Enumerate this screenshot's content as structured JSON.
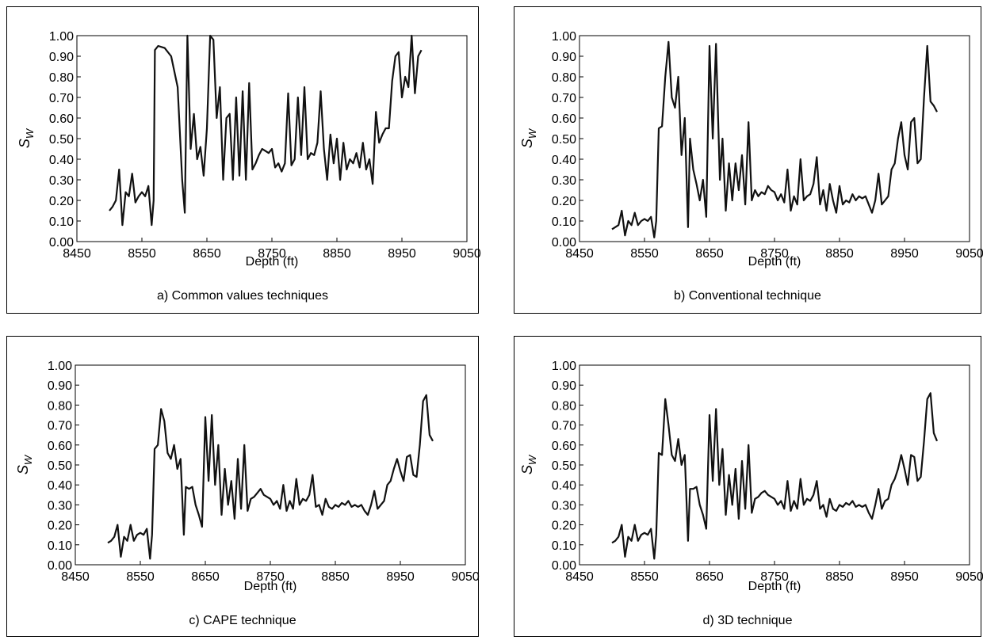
{
  "chart_data": [
    {
      "type": "line",
      "caption": "a) Common values techniques",
      "xlabel": "Depth (ft)",
      "ylabel": "SW",
      "xlim": [
        8450,
        9050
      ],
      "ylim": [
        0.0,
        1.0
      ],
      "xticks": [
        "8450",
        "8550",
        "8650",
        "8750",
        "8850",
        "8950",
        "9050"
      ],
      "yticks": [
        "0.00",
        "0.10",
        "0.20",
        "0.30",
        "0.40",
        "0.50",
        "0.60",
        "0.70",
        "0.80",
        "0.90",
        "1.00"
      ],
      "x": [
        8500,
        8505,
        8510,
        8515,
        8520,
        8525,
        8530,
        8535,
        8540,
        8545,
        8550,
        8555,
        8560,
        8565,
        8568,
        8570,
        8575,
        8585,
        8595,
        8605,
        8612,
        8616,
        8620,
        8625,
        8630,
        8635,
        8640,
        8645,
        8650,
        8655,
        8660,
        8665,
        8670,
        8675,
        8680,
        8685,
        8690,
        8695,
        8700,
        8705,
        8710,
        8715,
        8720,
        8725,
        8730,
        8735,
        8740,
        8745,
        8750,
        8755,
        8760,
        8765,
        8770,
        8775,
        8780,
        8785,
        8790,
        8795,
        8800,
        8805,
        8810,
        8815,
        8820,
        8825,
        8830,
        8835,
        8840,
        8845,
        8850,
        8855,
        8860,
        8865,
        8870,
        8875,
        8880,
        8885,
        8890,
        8895,
        8900,
        8905,
        8910,
        8915,
        8920,
        8925,
        8930,
        8935,
        8940,
        8945,
        8950,
        8955,
        8960,
        8965,
        8970,
        8975,
        8980
      ],
      "y": [
        0.15,
        0.17,
        0.2,
        0.35,
        0.08,
        0.24,
        0.22,
        0.33,
        0.19,
        0.22,
        0.24,
        0.22,
        0.27,
        0.08,
        0.2,
        0.93,
        0.95,
        0.94,
        0.9,
        0.75,
        0.3,
        0.14,
        1.0,
        0.45,
        0.62,
        0.4,
        0.46,
        0.32,
        0.55,
        1.0,
        0.98,
        0.6,
        0.75,
        0.3,
        0.6,
        0.62,
        0.3,
        0.7,
        0.32,
        0.73,
        0.3,
        0.77,
        0.35,
        0.38,
        0.42,
        0.45,
        0.44,
        0.43,
        0.45,
        0.36,
        0.38,
        0.34,
        0.38,
        0.72,
        0.37,
        0.4,
        0.7,
        0.42,
        0.75,
        0.4,
        0.43,
        0.42,
        0.48,
        0.73,
        0.45,
        0.3,
        0.52,
        0.38,
        0.5,
        0.3,
        0.48,
        0.35,
        0.4,
        0.38,
        0.43,
        0.36,
        0.48,
        0.35,
        0.4,
        0.28,
        0.63,
        0.48,
        0.52,
        0.55,
        0.55,
        0.78,
        0.9,
        0.92,
        0.7,
        0.8,
        0.75,
        1.0,
        0.72,
        0.9,
        0.93
      ]
    },
    {
      "type": "line",
      "caption": "b) Conventional technique",
      "xlabel": "Depth (ft)",
      "ylabel": "SW",
      "xlim": [
        8450,
        9050
      ],
      "ylim": [
        0.0,
        1.0
      ],
      "xticks": [
        "8450",
        "8550",
        "8650",
        "8750",
        "8850",
        "8950",
        "9050"
      ],
      "yticks": [
        "0.00",
        "0.10",
        "0.20",
        "0.30",
        "0.40",
        "0.50",
        "0.60",
        "0.70",
        "0.80",
        "0.90",
        "1.00"
      ],
      "x": [
        8500,
        8505,
        8510,
        8515,
        8520,
        8525,
        8530,
        8535,
        8540,
        8545,
        8550,
        8555,
        8560,
        8565,
        8568,
        8572,
        8577,
        8582,
        8587,
        8592,
        8597,
        8602,
        8607,
        8612,
        8617,
        8620,
        8625,
        8630,
        8635,
        8640,
        8645,
        8650,
        8655,
        8660,
        8663,
        8666,
        8670,
        8675,
        8680,
        8685,
        8690,
        8695,
        8700,
        8705,
        8710,
        8715,
        8720,
        8725,
        8730,
        8735,
        8740,
        8745,
        8750,
        8755,
        8760,
        8765,
        8770,
        8775,
        8780,
        8785,
        8790,
        8795,
        8800,
        8805,
        8810,
        8815,
        8820,
        8825,
        8830,
        8835,
        8840,
        8845,
        8850,
        8855,
        8860,
        8865,
        8870,
        8875,
        8880,
        8885,
        8890,
        8895,
        8900,
        8905,
        8910,
        8915,
        8920,
        8925,
        8930,
        8935,
        8940,
        8945,
        8950,
        8955,
        8960,
        8965,
        8970,
        8975,
        8980,
        8985,
        8990,
        8995,
        9000
      ],
      "y": [
        0.06,
        0.07,
        0.08,
        0.15,
        0.03,
        0.1,
        0.08,
        0.14,
        0.08,
        0.1,
        0.11,
        0.1,
        0.12,
        0.02,
        0.1,
        0.55,
        0.56,
        0.8,
        0.97,
        0.7,
        0.65,
        0.8,
        0.42,
        0.6,
        0.07,
        0.5,
        0.35,
        0.28,
        0.2,
        0.3,
        0.12,
        0.95,
        0.5,
        0.96,
        0.62,
        0.3,
        0.5,
        0.15,
        0.38,
        0.2,
        0.38,
        0.25,
        0.42,
        0.18,
        0.58,
        0.2,
        0.25,
        0.22,
        0.24,
        0.23,
        0.27,
        0.25,
        0.24,
        0.2,
        0.23,
        0.19,
        0.35,
        0.15,
        0.22,
        0.18,
        0.4,
        0.2,
        0.22,
        0.23,
        0.28,
        0.41,
        0.18,
        0.25,
        0.15,
        0.28,
        0.2,
        0.14,
        0.27,
        0.18,
        0.2,
        0.19,
        0.23,
        0.2,
        0.22,
        0.21,
        0.22,
        0.18,
        0.14,
        0.2,
        0.33,
        0.18,
        0.2,
        0.22,
        0.35,
        0.38,
        0.5,
        0.58,
        0.42,
        0.35,
        0.58,
        0.6,
        0.38,
        0.4,
        0.7,
        0.95,
        0.68,
        0.66,
        0.63
      ]
    },
    {
      "type": "line",
      "caption": "c) CAPE technique",
      "xlabel": "Depth (ft)",
      "ylabel": "SW",
      "xlim": [
        8450,
        9050
      ],
      "ylim": [
        0.0,
        1.0
      ],
      "xticks": [
        "8450",
        "8550",
        "8650",
        "8750",
        "8850",
        "8950",
        "9050"
      ],
      "yticks": [
        "0.00",
        "0.10",
        "0.20",
        "0.30",
        "0.40",
        "0.50",
        "0.60",
        "0.70",
        "0.80",
        "0.90",
        "1.00"
      ],
      "x": [
        8500,
        8505,
        8510,
        8515,
        8520,
        8525,
        8530,
        8535,
        8540,
        8545,
        8550,
        8555,
        8560,
        8565,
        8568,
        8572,
        8577,
        8582,
        8587,
        8592,
        8597,
        8602,
        8607,
        8612,
        8617,
        8620,
        8625,
        8630,
        8635,
        8640,
        8645,
        8650,
        8655,
        8660,
        8665,
        8670,
        8675,
        8680,
        8685,
        8690,
        8695,
        8700,
        8705,
        8710,
        8715,
        8720,
        8725,
        8730,
        8735,
        8740,
        8745,
        8750,
        8755,
        8760,
        8765,
        8770,
        8775,
        8780,
        8785,
        8790,
        8795,
        8800,
        8805,
        8810,
        8815,
        8820,
        8825,
        8830,
        8835,
        8840,
        8845,
        8850,
        8855,
        8860,
        8865,
        8870,
        8875,
        8880,
        8885,
        8890,
        8895,
        8900,
        8905,
        8910,
        8915,
        8920,
        8925,
        8930,
        8935,
        8940,
        8945,
        8950,
        8955,
        8960,
        8965,
        8970,
        8975,
        8980,
        8985,
        8990,
        8995,
        9000
      ],
      "y": [
        0.11,
        0.12,
        0.14,
        0.2,
        0.04,
        0.14,
        0.12,
        0.2,
        0.12,
        0.15,
        0.16,
        0.15,
        0.18,
        0.03,
        0.15,
        0.58,
        0.6,
        0.78,
        0.72,
        0.56,
        0.53,
        0.6,
        0.48,
        0.53,
        0.15,
        0.39,
        0.38,
        0.39,
        0.3,
        0.25,
        0.19,
        0.74,
        0.42,
        0.75,
        0.4,
        0.6,
        0.25,
        0.48,
        0.3,
        0.42,
        0.23,
        0.53,
        0.28,
        0.6,
        0.27,
        0.33,
        0.34,
        0.36,
        0.38,
        0.35,
        0.34,
        0.33,
        0.3,
        0.32,
        0.28,
        0.4,
        0.27,
        0.32,
        0.28,
        0.43,
        0.3,
        0.33,
        0.32,
        0.35,
        0.45,
        0.29,
        0.3,
        0.25,
        0.33,
        0.29,
        0.28,
        0.3,
        0.29,
        0.31,
        0.3,
        0.32,
        0.29,
        0.3,
        0.29,
        0.3,
        0.27,
        0.25,
        0.3,
        0.37,
        0.28,
        0.3,
        0.32,
        0.4,
        0.42,
        0.48,
        0.53,
        0.47,
        0.42,
        0.54,
        0.55,
        0.45,
        0.44,
        0.6,
        0.82,
        0.85,
        0.65,
        0.62
      ]
    },
    {
      "type": "line",
      "caption": "d) 3D technique",
      "xlabel": "Depth (ft)",
      "ylabel": "SW",
      "xlim": [
        8450,
        9050
      ],
      "ylim": [
        0.0,
        1.0
      ],
      "xticks": [
        "8450",
        "8550",
        "8650",
        "8750",
        "8850",
        "8950",
        "9050"
      ],
      "yticks": [
        "0.00",
        "0.10",
        "0.20",
        "0.30",
        "0.40",
        "0.50",
        "0.60",
        "0.70",
        "0.80",
        "0.90",
        "1.00"
      ],
      "x": [
        8500,
        8505,
        8510,
        8515,
        8520,
        8525,
        8530,
        8535,
        8540,
        8545,
        8550,
        8555,
        8560,
        8565,
        8568,
        8572,
        8577,
        8582,
        8587,
        8592,
        8597,
        8602,
        8607,
        8612,
        8617,
        8620,
        8625,
        8630,
        8635,
        8640,
        8645,
        8650,
        8655,
        8660,
        8665,
        8670,
        8675,
        8680,
        8685,
        8690,
        8695,
        8700,
        8705,
        8710,
        8715,
        8720,
        8725,
        8730,
        8735,
        8740,
        8745,
        8750,
        8755,
        8760,
        8765,
        8770,
        8775,
        8780,
        8785,
        8790,
        8795,
        8800,
        8805,
        8810,
        8815,
        8820,
        8825,
        8830,
        8835,
        8840,
        8845,
        8850,
        8855,
        8860,
        8865,
        8870,
        8875,
        8880,
        8885,
        8890,
        8895,
        8900,
        8905,
        8910,
        8915,
        8920,
        8925,
        8930,
        8935,
        8940,
        8945,
        8950,
        8955,
        8960,
        8965,
        8970,
        8975,
        8980,
        8985,
        8990,
        8995,
        9000
      ],
      "y": [
        0.11,
        0.12,
        0.14,
        0.2,
        0.04,
        0.14,
        0.12,
        0.2,
        0.12,
        0.15,
        0.16,
        0.15,
        0.18,
        0.03,
        0.15,
        0.56,
        0.55,
        0.83,
        0.7,
        0.55,
        0.52,
        0.63,
        0.5,
        0.55,
        0.12,
        0.38,
        0.38,
        0.39,
        0.3,
        0.25,
        0.18,
        0.75,
        0.42,
        0.78,
        0.4,
        0.58,
        0.25,
        0.45,
        0.3,
        0.48,
        0.23,
        0.52,
        0.28,
        0.6,
        0.26,
        0.33,
        0.34,
        0.36,
        0.37,
        0.35,
        0.34,
        0.33,
        0.3,
        0.32,
        0.28,
        0.42,
        0.27,
        0.32,
        0.28,
        0.43,
        0.3,
        0.33,
        0.32,
        0.35,
        0.42,
        0.28,
        0.3,
        0.24,
        0.33,
        0.28,
        0.27,
        0.3,
        0.29,
        0.31,
        0.3,
        0.32,
        0.29,
        0.3,
        0.29,
        0.3,
        0.26,
        0.23,
        0.3,
        0.38,
        0.28,
        0.32,
        0.33,
        0.4,
        0.43,
        0.48,
        0.55,
        0.48,
        0.4,
        0.55,
        0.54,
        0.42,
        0.44,
        0.62,
        0.83,
        0.86,
        0.66,
        0.62
      ]
    }
  ]
}
